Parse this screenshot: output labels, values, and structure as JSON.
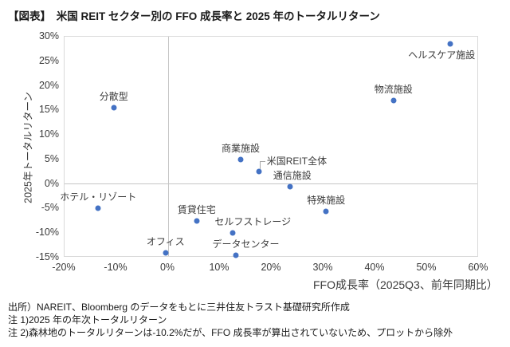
{
  "title": "【図表】　米国 REIT セクター別の FFO 成長率と 2025 年のトータルリターン",
  "notes": [
    "出所）NAREIT、Bloomberg のデータをもとに三井住友トラスト基礎研究所作成",
    "注 1)2025 年の年次トータルリターン",
    "注 2)森林地のトータルリターンは-10.2%だが、FFO 成長率が算出されていないため、プロットから除外"
  ],
  "colors": {
    "marker": "#4472c4",
    "label_text": "#3a3a3a",
    "plot_border": "#d9d9d9",
    "zero_line": "#c6c6c6",
    "leader_line": "#a6a6a6"
  },
  "chart_data": {
    "type": "scatter",
    "title": "米国REITセクター別のFFO成長率と2025年のトータルリターン",
    "xlabel": "FFO成長率（2025Q3、前年同期比）",
    "ylabel": "2025年トータルリターン",
    "xlim": [
      -20,
      60
    ],
    "ylim": [
      -15,
      30
    ],
    "x_ticks": [
      "-20%",
      "-10%",
      "0%",
      "10%",
      "20%",
      "30%",
      "40%",
      "50%",
      "60%"
    ],
    "y_ticks": [
      "30%",
      "25%",
      "20%",
      "15%",
      "10%",
      "5%",
      "0%",
      "-5%",
      "-10%",
      "-15%"
    ],
    "grid": false,
    "legend": false,
    "marker_color": "#4472c4",
    "points": [
      {
        "label": "分散型",
        "x": -10.5,
        "y": 15.5,
        "label_pos": "above",
        "dx": 0
      },
      {
        "label": "ホテル・リゾート",
        "x": -13.5,
        "y": -5,
        "label_pos": "above",
        "dx": 0
      },
      {
        "label": "オフィス",
        "x": -0.5,
        "y": -14,
        "label_pos": "above",
        "dx": 0
      },
      {
        "label": "賃貸住宅",
        "x": 5.5,
        "y": -7.5,
        "label_pos": "above",
        "dx": 0
      },
      {
        "label": "セルフストレージ",
        "x": 12.5,
        "y": -10,
        "label_pos": "above",
        "dx": 25
      },
      {
        "label": "データセンター",
        "x": 13,
        "y": -14.5,
        "label_pos": "above",
        "dx": 13
      },
      {
        "label": "商業施設",
        "x": 14,
        "y": 5,
        "label_pos": "above",
        "dx": 0
      },
      {
        "label": "米国REIT全体",
        "x": 17.5,
        "y": 2.5,
        "label_pos": "right-leader",
        "dx": 0
      },
      {
        "label": "通信施設",
        "x": 23.5,
        "y": -0.5,
        "label_pos": "above",
        "dx": 3
      },
      {
        "label": "特殊施設",
        "x": 30.5,
        "y": -5.5,
        "label_pos": "above",
        "dx": 0
      },
      {
        "label": "物流施設",
        "x": 43.5,
        "y": 17,
        "label_pos": "above",
        "dx": 0
      },
      {
        "label": "ヘルスケア施設",
        "x": 54.5,
        "y": 28.5,
        "label_pos": "below",
        "dx": -11
      }
    ]
  }
}
